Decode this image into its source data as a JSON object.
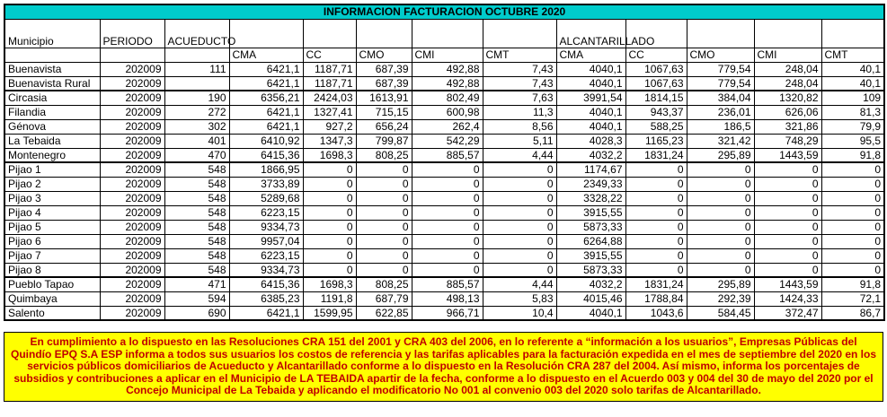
{
  "title": "INFORMACION FACTURACION OCTUBRE 2020",
  "colors": {
    "title_bg": "#00CCCC",
    "footer_bg": "#FFFF00",
    "footer_text": "#C00000"
  },
  "table": {
    "group_headers": {
      "municipio": "Municipio",
      "periodo": "PERIODO",
      "acueducto": "ACUEDUCTO",
      "alcantarillado": "ALCANTARILLADO"
    },
    "sub_headers": [
      "CMA",
      "CC",
      "CMO",
      "CMI",
      "CMT",
      "CMA",
      "CC",
      "CMO",
      "CMI",
      "CMT"
    ],
    "rows": [
      {
        "municipio": "Buenavista",
        "periodo": "202009",
        "codigo": "111",
        "values": [
          "6421,1",
          "1187,71",
          "687,39",
          "492,88",
          "7,43",
          "4040,1",
          "1067,63",
          "779,54",
          "248,04",
          "40,1"
        ],
        "group_end": false
      },
      {
        "municipio": "Buenavista Rural",
        "periodo": "202009",
        "codigo": "",
        "values": [
          "6421,1",
          "1187,71",
          "687,39",
          "492,88",
          "7,43",
          "4040,1",
          "1067,63",
          "779,54",
          "248,04",
          "40,1"
        ],
        "group_end": true
      },
      {
        "municipio": "Circasia",
        "periodo": "202009",
        "codigo": "190",
        "values": [
          "6356,21",
          "2424,03",
          "1613,91",
          "802,49",
          "7,63",
          "3991,54",
          "1814,15",
          "384,04",
          "1320,82",
          "109"
        ],
        "group_end": false
      },
      {
        "municipio": "Filandia",
        "periodo": "202009",
        "codigo": "272",
        "values": [
          "6421,1",
          "1327,41",
          "715,15",
          "600,98",
          "11,3",
          "4040,1",
          "943,37",
          "236,01",
          "626,06",
          "81,3"
        ],
        "group_end": false
      },
      {
        "municipio": "Génova",
        "periodo": "202009",
        "codigo": "302",
        "values": [
          "6421,1",
          "927,2",
          "656,24",
          "262,4",
          "8,56",
          "4040,1",
          "588,25",
          "186,5",
          "321,86",
          "79,9"
        ],
        "group_end": false
      },
      {
        "municipio": "La Tebaida",
        "periodo": "202009",
        "codigo": "401",
        "values": [
          "6410,92",
          "1347,3",
          "799,87",
          "542,29",
          "5,11",
          "4028,3",
          "1165,23",
          "321,42",
          "748,29",
          "95,5"
        ],
        "group_end": false
      },
      {
        "municipio": "Montenegro",
        "periodo": "202009",
        "codigo": "470",
        "values": [
          "6415,36",
          "1698,3",
          "808,25",
          "885,57",
          "4,44",
          "4032,2",
          "1831,24",
          "295,89",
          "1443,59",
          "91,8"
        ],
        "group_end": true
      },
      {
        "municipio": "Pijao 1",
        "periodo": "202009",
        "codigo": "548",
        "values": [
          "1866,95",
          "0",
          "0",
          "0",
          "0",
          "1174,67",
          "0",
          "0",
          "0",
          "0"
        ],
        "group_end": false
      },
      {
        "municipio": "Pijao 2",
        "periodo": "202009",
        "codigo": "548",
        "values": [
          "3733,89",
          "0",
          "0",
          "0",
          "0",
          "2349,33",
          "0",
          "0",
          "0",
          "0"
        ],
        "group_end": false
      },
      {
        "municipio": "Pijao 3",
        "periodo": "202009",
        "codigo": "548",
        "values": [
          "5289,68",
          "0",
          "0",
          "0",
          "0",
          "3328,22",
          "0",
          "0",
          "0",
          "0"
        ],
        "group_end": false
      },
      {
        "municipio": "Pijao 4",
        "periodo": "202009",
        "codigo": "548",
        "values": [
          "6223,15",
          "0",
          "0",
          "0",
          "0",
          "3915,55",
          "0",
          "0",
          "0",
          "0"
        ],
        "group_end": false
      },
      {
        "municipio": "Pijao 5",
        "periodo": "202009",
        "codigo": "548",
        "values": [
          "9334,73",
          "0",
          "0",
          "0",
          "0",
          "5873,33",
          "0",
          "0",
          "0",
          "0"
        ],
        "group_end": false
      },
      {
        "municipio": "Pijao 6",
        "periodo": "202009",
        "codigo": "548",
        "values": [
          "9957,04",
          "0",
          "0",
          "0",
          "0",
          "6264,88",
          "0",
          "0",
          "0",
          "0"
        ],
        "group_end": false
      },
      {
        "municipio": "Pijao 7",
        "periodo": "202009",
        "codigo": "548",
        "values": [
          "6223,15",
          "0",
          "0",
          "0",
          "0",
          "3915,55",
          "0",
          "0",
          "0",
          "0"
        ],
        "group_end": false
      },
      {
        "municipio": "Pijao 8",
        "periodo": "202009",
        "codigo": "548",
        "values": [
          "9334,73",
          "0",
          "0",
          "0",
          "0",
          "5873,33",
          "0",
          "0",
          "0",
          "0"
        ],
        "group_end": true
      },
      {
        "municipio": "Pueblo Tapao",
        "periodo": "202009",
        "codigo": "471",
        "values": [
          "6415,36",
          "1698,3",
          "808,25",
          "885,57",
          "4,44",
          "4032,2",
          "1831,24",
          "295,89",
          "1443,59",
          "91,8"
        ],
        "group_end": false
      },
      {
        "municipio": "Quimbaya",
        "periodo": "202009",
        "codigo": "594",
        "values": [
          "6385,23",
          "1191,8",
          "687,79",
          "498,13",
          "5,83",
          "4015,46",
          "1788,84",
          "292,39",
          "1424,33",
          "72,1"
        ],
        "group_end": false
      },
      {
        "municipio": "Salento",
        "periodo": "202009",
        "codigo": "690",
        "values": [
          "6421,1",
          "1599,95",
          "622,85",
          "966,71",
          "10,4",
          "4040,1",
          "1043,6",
          "584,45",
          "372,47",
          "86,7"
        ],
        "group_end": false
      }
    ]
  },
  "footer": {
    "text": "En cumplimiento a lo dispuesto en las Resoluciones CRA 151 del 2001 y CRA 403 del 2006, en lo referente a “información a los usuarios”, Empresas Públicas del Quindío EPQ S.A ESP informa a todos sus usuarios los costos de referencia y las tarifas aplicables para la facturación expedida en el mes de septiembre del 2020 en los servicios públicos domiciliarios de Acueducto y Alcantarillado conforme a lo dispuesto en la Resolución CRA 287 del 2004. Así mismo, informa los porcentajes de subsidios y contribuciones a aplicar en el Municipio de LA TEBAIDA apartir de la fecha, conforme a lo dispuesto en el Acuerdo 003  y 004 del 30 de mayo del 2020 por el Concejo Municipal de La Tebaida y aplicando el modificatorio No 001 al convenio 003 del 2020 solo tarifas de Alcantarillado."
  }
}
